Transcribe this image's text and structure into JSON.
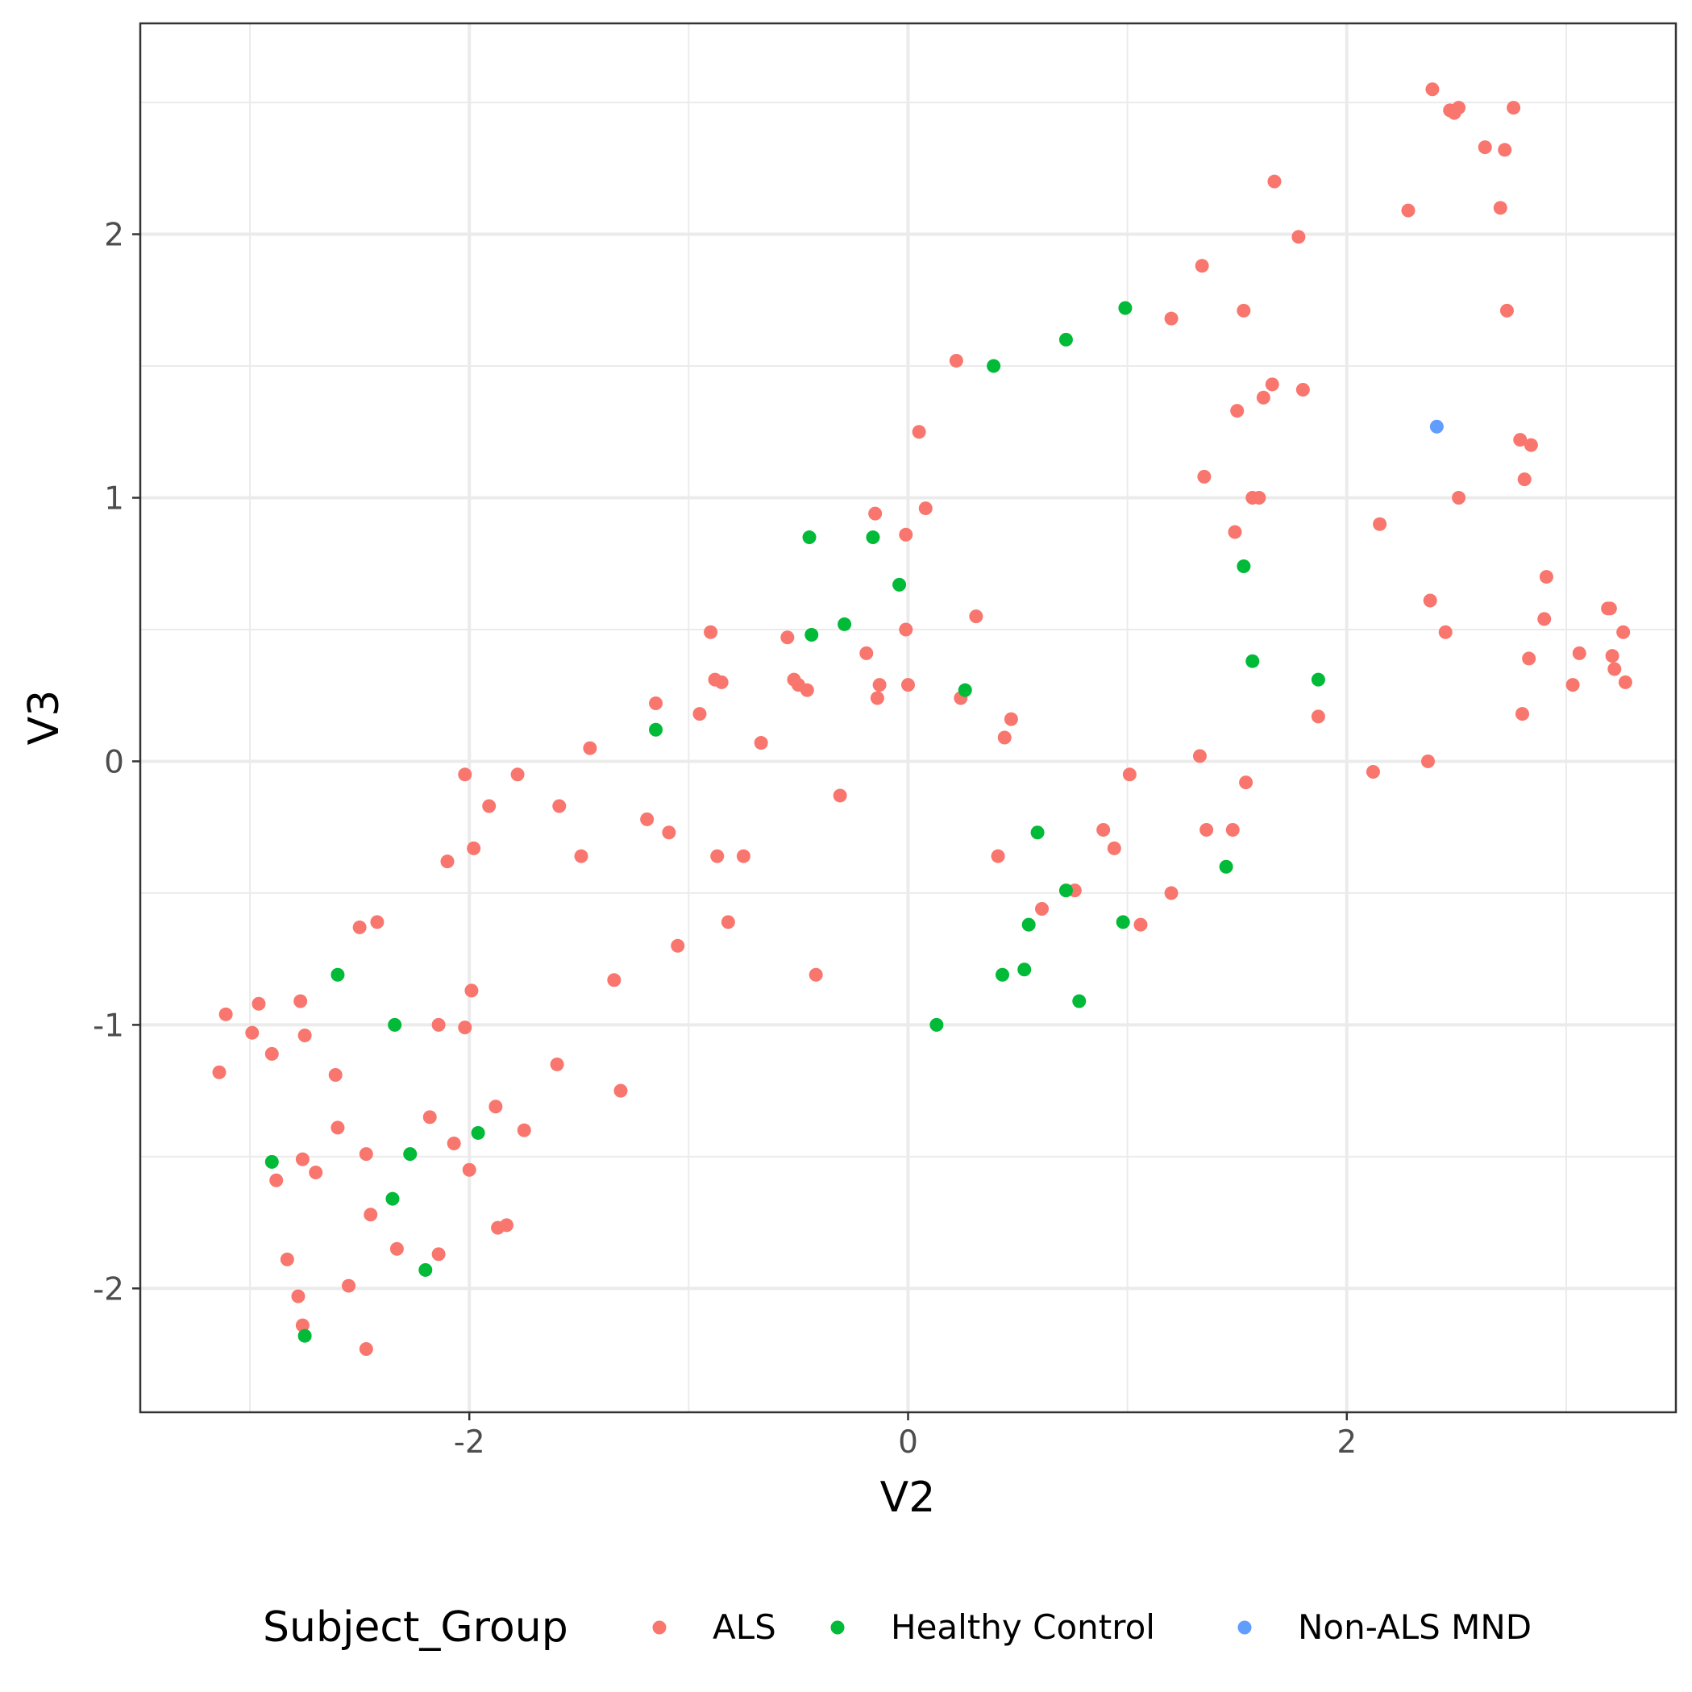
{
  "chart_data": {
    "type": "scatter",
    "title": "",
    "xlabel": "V2",
    "ylabel": "V3",
    "xlim": [
      -3.5,
      3.5
    ],
    "ylim": [
      -2.47,
      2.8
    ],
    "x_ticks": [
      -2,
      0,
      2
    ],
    "x_tick_labels": [
      "-2",
      "0",
      "2"
    ],
    "y_ticks": [
      -2,
      -1,
      0,
      1,
      2
    ],
    "y_tick_labels": [
      "-2",
      "-1",
      "0",
      "1",
      "2"
    ],
    "grid": true,
    "legend": {
      "title": "Subject_Group",
      "position": "bottom"
    },
    "series": [
      {
        "name": "ALS",
        "color": "#F8766D",
        "points": [
          [
            -3.14,
            -1.18
          ],
          [
            -3.11,
            -0.96
          ],
          [
            -2.99,
            -1.03
          ],
          [
            -2.96,
            -0.92
          ],
          [
            -2.9,
            -1.11
          ],
          [
            -2.88,
            -1.59
          ],
          [
            -2.83,
            -1.89
          ],
          [
            -2.78,
            -2.03
          ],
          [
            -2.77,
            -0.91
          ],
          [
            -2.76,
            -2.14
          ],
          [
            -2.76,
            -1.51
          ],
          [
            -2.75,
            -1.04
          ],
          [
            -2.7,
            -1.56
          ],
          [
            -2.61,
            -1.19
          ],
          [
            -2.6,
            -1.39
          ],
          [
            -2.55,
            -1.99
          ],
          [
            -2.5,
            -0.63
          ],
          [
            -2.47,
            -2.23
          ],
          [
            -2.47,
            -1.49
          ],
          [
            -2.45,
            -1.72
          ],
          [
            -2.42,
            -0.61
          ],
          [
            -2.33,
            -1.85
          ],
          [
            -2.18,
            -1.35
          ],
          [
            -2.14,
            -1.0
          ],
          [
            -2.14,
            -1.87
          ],
          [
            -2.1,
            -0.38
          ],
          [
            -2.07,
            -1.45
          ],
          [
            -2.02,
            -0.05
          ],
          [
            -2.02,
            -1.01
          ],
          [
            -2.0,
            -1.55
          ],
          [
            -1.99,
            -0.87
          ],
          [
            -1.98,
            -0.33
          ],
          [
            -1.91,
            -0.17
          ],
          [
            -1.88,
            -1.31
          ],
          [
            -1.87,
            -1.77
          ],
          [
            -1.83,
            -1.76
          ],
          [
            -1.78,
            -0.05
          ],
          [
            -1.75,
            -1.4
          ],
          [
            -1.6,
            -1.15
          ],
          [
            -1.59,
            -0.17
          ],
          [
            -1.49,
            -0.36
          ],
          [
            -1.45,
            0.05
          ],
          [
            -1.34,
            -0.83
          ],
          [
            -1.31,
            -1.25
          ],
          [
            -1.19,
            -0.22
          ],
          [
            -1.15,
            0.22
          ],
          [
            -1.09,
            -0.27
          ],
          [
            -1.05,
            -0.7
          ],
          [
            -0.95,
            0.18
          ],
          [
            -0.9,
            0.49
          ],
          [
            -0.88,
            0.31
          ],
          [
            -0.87,
            -0.36
          ],
          [
            -0.85,
            0.3
          ],
          [
            -0.82,
            -0.61
          ],
          [
            -0.75,
            -0.36
          ],
          [
            -0.67,
            0.07
          ],
          [
            -0.55,
            0.47
          ],
          [
            -0.52,
            0.31
          ],
          [
            -0.5,
            0.29
          ],
          [
            -0.46,
            0.27
          ],
          [
            -0.42,
            -0.81
          ],
          [
            -0.31,
            -0.13
          ],
          [
            -0.19,
            0.41
          ],
          [
            -0.15,
            0.94
          ],
          [
            -0.14,
            0.24
          ],
          [
            -0.13,
            0.29
          ],
          [
            -0.01,
            0.5
          ],
          [
            -0.01,
            0.86
          ],
          [
            0.0,
            0.29
          ],
          [
            0.05,
            1.25
          ],
          [
            0.08,
            0.96
          ],
          [
            0.22,
            1.52
          ],
          [
            0.24,
            0.24
          ],
          [
            0.31,
            0.55
          ],
          [
            0.41,
            -0.36
          ],
          [
            0.44,
            0.09
          ],
          [
            0.47,
            0.16
          ],
          [
            0.61,
            -0.56
          ],
          [
            0.76,
            -0.49
          ],
          [
            0.89,
            -0.26
          ],
          [
            0.94,
            -0.33
          ],
          [
            1.01,
            -0.05
          ],
          [
            1.06,
            -0.62
          ],
          [
            1.2,
            1.68
          ],
          [
            1.2,
            -0.5
          ],
          [
            1.33,
            0.02
          ],
          [
            1.34,
            1.88
          ],
          [
            1.35,
            1.08
          ],
          [
            1.36,
            -0.26
          ],
          [
            1.48,
            -0.26
          ],
          [
            1.49,
            0.87
          ],
          [
            1.5,
            1.33
          ],
          [
            1.53,
            1.71
          ],
          [
            1.54,
            -0.08
          ],
          [
            1.57,
            1.0
          ],
          [
            1.6,
            1.0
          ],
          [
            1.62,
            1.38
          ],
          [
            1.66,
            1.43
          ],
          [
            1.67,
            2.2
          ],
          [
            1.78,
            1.99
          ],
          [
            1.8,
            1.41
          ],
          [
            1.87,
            0.17
          ],
          [
            2.12,
            -0.04
          ],
          [
            2.15,
            0.9
          ],
          [
            2.28,
            2.09
          ],
          [
            2.37,
            0.0
          ],
          [
            2.38,
            0.61
          ],
          [
            2.39,
            2.55
          ],
          [
            2.45,
            0.49
          ],
          [
            2.47,
            2.47
          ],
          [
            2.49,
            2.46
          ],
          [
            2.51,
            2.48
          ],
          [
            2.51,
            1.0
          ],
          [
            2.63,
            2.33
          ],
          [
            2.7,
            2.1
          ],
          [
            2.72,
            2.32
          ],
          [
            2.73,
            1.71
          ],
          [
            2.76,
            2.48
          ],
          [
            2.79,
            1.22
          ],
          [
            2.8,
            0.18
          ],
          [
            2.81,
            1.07
          ],
          [
            2.83,
            0.39
          ],
          [
            2.84,
            1.2
          ],
          [
            2.9,
            0.54
          ],
          [
            2.91,
            0.7
          ],
          [
            3.03,
            0.29
          ],
          [
            3.06,
            0.41
          ],
          [
            3.19,
            0.58
          ],
          [
            3.2,
            0.58
          ],
          [
            3.21,
            0.4
          ],
          [
            3.22,
            0.35
          ],
          [
            3.26,
            0.49
          ],
          [
            3.27,
            0.3
          ]
        ]
      },
      {
        "name": "Healthy Control",
        "color": "#00BA38",
        "points": [
          [
            -2.9,
            -1.52
          ],
          [
            -2.75,
            -2.18
          ],
          [
            -2.6,
            -0.81
          ],
          [
            -2.35,
            -1.66
          ],
          [
            -2.34,
            -1.0
          ],
          [
            -2.27,
            -1.49
          ],
          [
            -2.2,
            -1.93
          ],
          [
            -1.96,
            -1.41
          ],
          [
            -1.15,
            0.12
          ],
          [
            -0.45,
            0.85
          ],
          [
            -0.44,
            0.48
          ],
          [
            -0.29,
            0.52
          ],
          [
            -0.16,
            0.85
          ],
          [
            -0.04,
            0.67
          ],
          [
            0.13,
            -1.0
          ],
          [
            0.26,
            0.27
          ],
          [
            0.39,
            1.5
          ],
          [
            0.43,
            -0.81
          ],
          [
            0.53,
            -0.79
          ],
          [
            0.55,
            -0.62
          ],
          [
            0.59,
            -0.27
          ],
          [
            0.72,
            -0.49
          ],
          [
            0.72,
            1.6
          ],
          [
            0.78,
            -0.91
          ],
          [
            0.98,
            -0.61
          ],
          [
            0.99,
            1.72
          ],
          [
            1.45,
            -0.4
          ],
          [
            1.53,
            0.74
          ],
          [
            1.57,
            0.38
          ],
          [
            1.87,
            0.31
          ]
        ]
      },
      {
        "name": "Non-ALS MND",
        "color": "#619CFF",
        "points": [
          [
            2.41,
            1.27
          ]
        ]
      }
    ]
  }
}
